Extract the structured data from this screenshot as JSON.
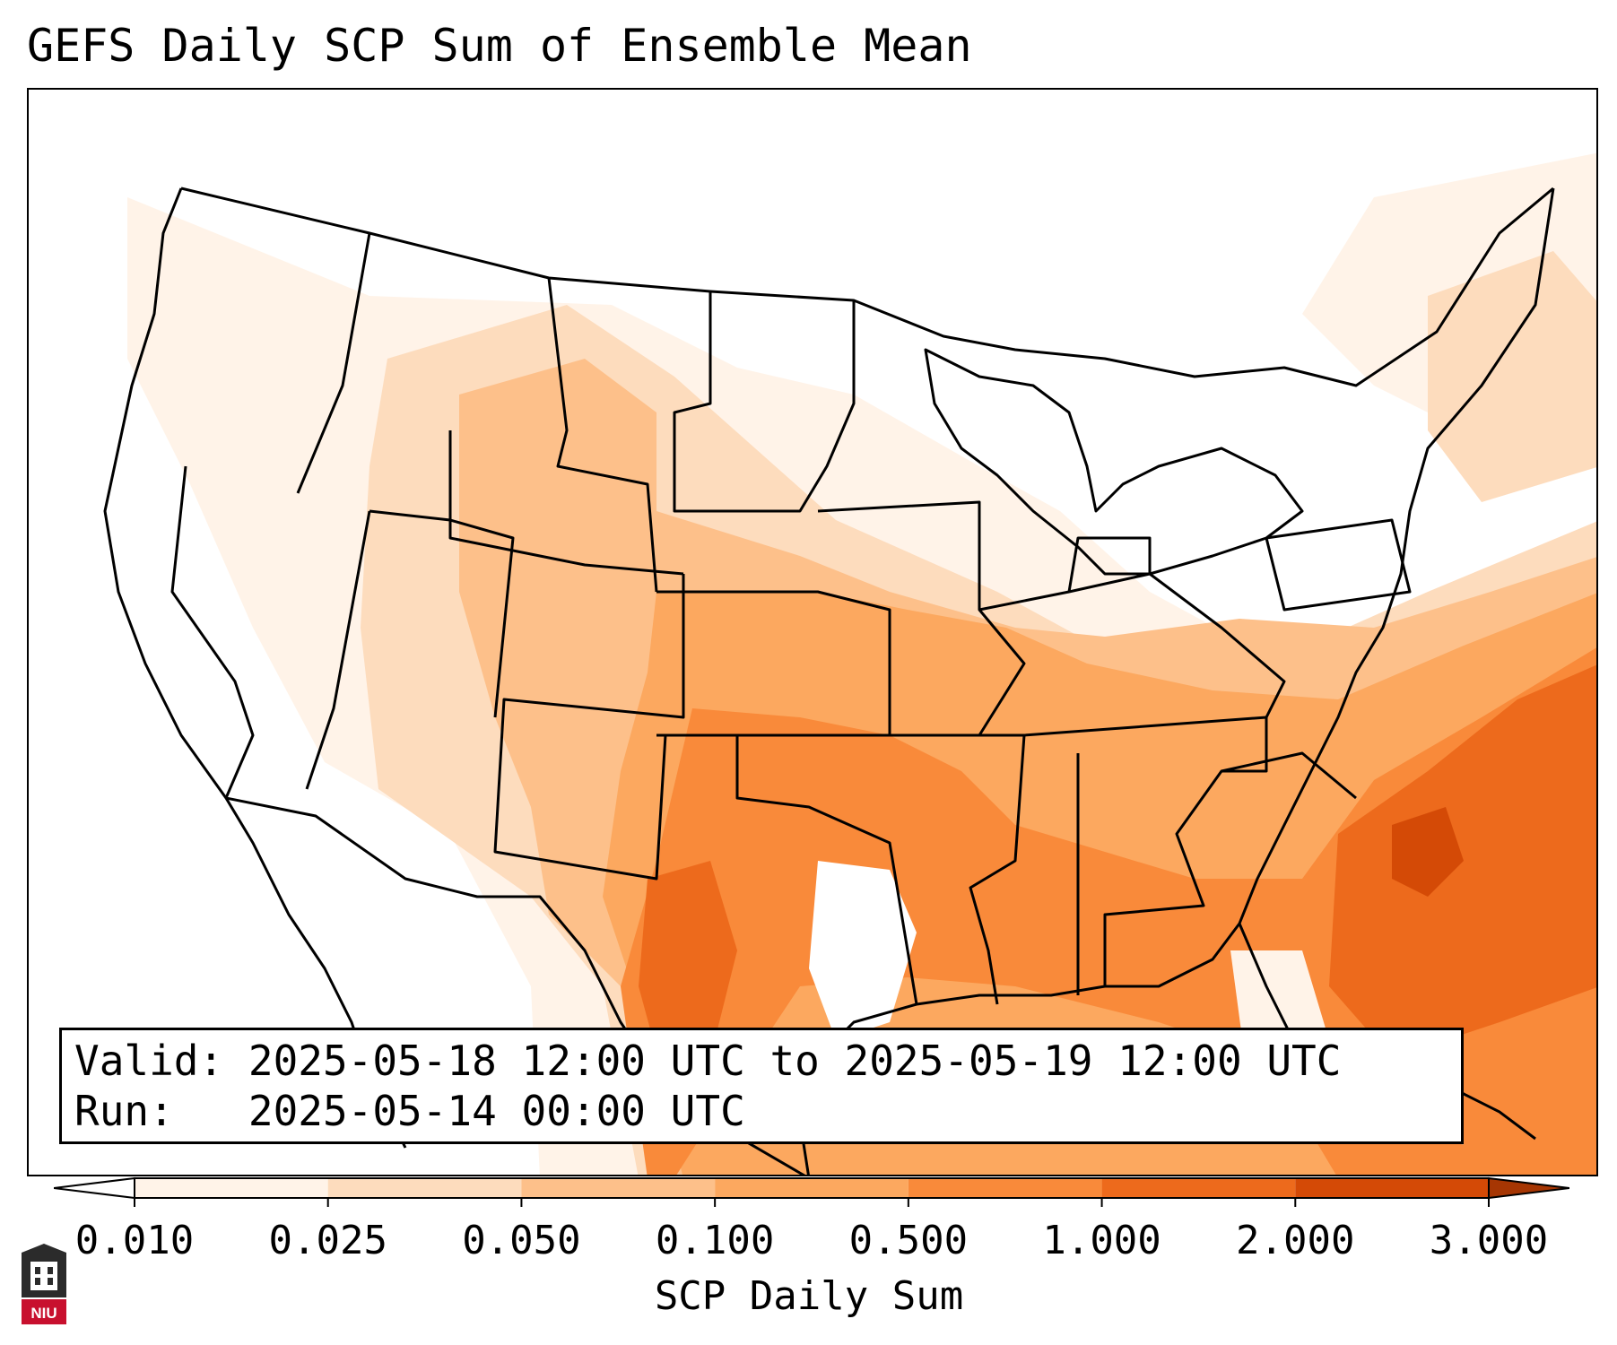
{
  "title": "GEFS Daily SCP Sum of Ensemble Mean",
  "info": {
    "valid_label": "Valid:",
    "valid_value": "2025-05-18 12:00 UTC to 2025-05-19 12:00 UTC",
    "run_label": "Run:",
    "run_value": "2025-05-14 00:00 UTC"
  },
  "colorbar": {
    "label": "SCP Daily Sum",
    "ticks": [
      "0.010",
      "0.025",
      "0.050",
      "0.100",
      "0.500",
      "1.000",
      "2.000",
      "3.000"
    ],
    "colors": [
      "#fff3e8",
      "#fddcbd",
      "#fdc08a",
      "#fca85f",
      "#f98a3a",
      "#ed6a1c",
      "#d44a06",
      "#a63603"
    ],
    "extend": "both"
  },
  "logo": {
    "text": "NIU",
    "color": "#c8102e"
  },
  "map": {
    "projection": "Lambert conformal",
    "region": "Contiguous United States"
  }
}
